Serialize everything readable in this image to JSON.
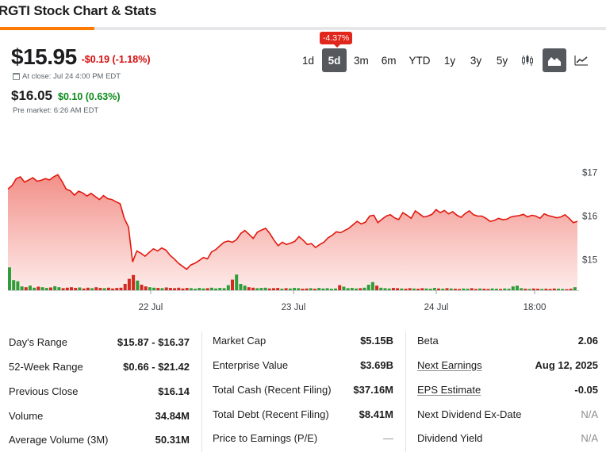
{
  "page": {
    "title": "RGTI Stock Chart & Stats"
  },
  "quote": {
    "price": "$15.95",
    "change": "-$0.19 (-1.18%)",
    "close_info": "At close: Jul 24 4:00 PM EDT",
    "premarket_price": "$16.05",
    "premarket_change": "$0.10 (0.63%)",
    "premarket_info": "Pre market: 6:26 AM EDT"
  },
  "range_tabs": {
    "selected": "5d",
    "selected_change_badge": "-4.37%",
    "items": [
      "1d",
      "5d",
      "3m",
      "6m",
      "YTD",
      "1y",
      "3y",
      "5y"
    ]
  },
  "chart_types": {
    "items": [
      "candlestick-chart-icon",
      "mountain-chart-icon",
      "line-chart-icon"
    ],
    "selected": "mountain-chart-icon"
  },
  "colors": {
    "accent": "#ff7a00",
    "down": "#d60a0a",
    "up": "#0a8a19",
    "line": "#e2190f",
    "area": "#f08a84",
    "badge": "#e1261c",
    "tab_active": "#55595e"
  },
  "chart_data": {
    "type": "area",
    "title": "",
    "xlabel": "",
    "ylabel": "",
    "ylim": [
      14.3,
      17.5
    ],
    "y_ticks": [
      "$17",
      "$16",
      "$15"
    ],
    "x_ticks": [
      "22 Jul",
      "23 Jul",
      "24 Jul",
      "18:00"
    ],
    "grid": false,
    "series": [
      {
        "values": [
          16.62,
          16.7,
          16.86,
          16.9,
          16.78,
          16.83,
          16.88,
          16.8,
          16.82,
          16.86,
          16.83,
          16.9,
          16.95,
          16.8,
          16.62,
          16.58,
          16.48,
          16.57,
          16.53,
          16.46,
          16.52,
          16.45,
          16.38,
          16.47,
          16.4,
          16.38,
          16.33,
          16.28,
          15.95,
          15.75,
          14.95,
          15.2,
          15.15,
          15.08,
          15.17,
          15.25,
          15.2,
          15.27,
          15.22,
          15.1,
          15.02,
          14.92,
          14.85,
          14.78,
          14.88,
          14.92,
          14.98,
          15.05,
          15.02,
          15.18,
          15.23,
          15.32,
          15.4,
          15.43,
          15.4,
          15.46,
          15.6,
          15.67,
          15.58,
          15.49,
          15.63,
          15.68,
          15.72,
          15.6,
          15.45,
          15.32,
          15.4,
          15.35,
          15.38,
          15.42,
          15.53,
          15.45,
          15.35,
          15.37,
          15.28,
          15.35,
          15.4,
          15.5,
          15.56,
          15.64,
          15.62,
          15.67,
          15.72,
          15.8,
          15.88,
          15.82,
          15.86,
          16.0,
          16.02,
          15.85,
          15.93,
          16.0,
          16.03,
          15.96,
          15.92,
          16.08,
          16.02,
          15.95,
          16.12,
          16.05,
          15.98,
          16.0,
          16.04,
          16.15,
          16.08,
          16.13,
          16.05,
          16.1,
          16.02,
          15.97,
          16.06,
          16.12,
          16.03,
          16.0,
          16.0,
          15.95,
          15.88,
          15.9,
          15.95,
          15.92,
          15.93,
          15.98,
          16.0,
          16.01,
          16.04,
          15.98,
          16.02,
          16.0,
          15.95,
          16.05,
          16.01,
          15.99,
          15.96,
          15.98,
          16.03,
          15.95,
          15.85,
          15.88
        ]
      }
    ],
    "volume": [
      0.9,
      0.4,
      0.35,
      0.15,
      0.12,
      0.18,
      0.1,
      0.14,
      0.12,
      0.09,
      0.11,
      0.16,
      0.12,
      0.08,
      0.1,
      0.12,
      0.09,
      0.11,
      0.07,
      0.1,
      0.08,
      0.12,
      0.09,
      0.08,
      0.1,
      0.07,
      0.09,
      0.1,
      0.25,
      0.45,
      0.6,
      0.38,
      0.22,
      0.15,
      0.12,
      0.1,
      0.09,
      0.08,
      0.11,
      0.09,
      0.08,
      0.1,
      0.07,
      0.09,
      0.08,
      0.06,
      0.09,
      0.07,
      0.08,
      0.1,
      0.07,
      0.09,
      0.08,
      0.2,
      0.42,
      0.62,
      0.25,
      0.18,
      0.12,
      0.1,
      0.08,
      0.09,
      0.1,
      0.07,
      0.08,
      0.09,
      0.06,
      0.08,
      0.07,
      0.09,
      0.08,
      0.06,
      0.07,
      0.08,
      0.06,
      0.09,
      0.07,
      0.08,
      0.06,
      0.07,
      0.2,
      0.14,
      0.08,
      0.09,
      0.07,
      0.08,
      0.1,
      0.22,
      0.32,
      0.18,
      0.1,
      0.08,
      0.07,
      0.09,
      0.08,
      0.07,
      0.06,
      0.08,
      0.07,
      0.06,
      0.08,
      0.07,
      0.06,
      0.09,
      0.07,
      0.06,
      0.08,
      0.07,
      0.06,
      0.05,
      0.07,
      0.06,
      0.08,
      0.05,
      0.07,
      0.06,
      0.05,
      0.07,
      0.06,
      0.05,
      0.07,
      0.06,
      0.15,
      0.18,
      0.08,
      0.06,
      0.05,
      0.07,
      0.06,
      0.05,
      0.06,
      0.05,
      0.07,
      0.06,
      0.05,
      0.04,
      0.06,
      0.12
    ]
  },
  "stats": {
    "col1": [
      {
        "label": "Day's Range",
        "value": "$15.87 - $16.37"
      },
      {
        "label": "52-Week Range",
        "value": "$0.66 - $21.42"
      },
      {
        "label": "Previous Close",
        "value": "$16.14"
      },
      {
        "label": "Volume",
        "value": "34.84M"
      },
      {
        "label": "Average Volume (3M)",
        "value": "50.31M"
      }
    ],
    "col2": [
      {
        "label": "Market Cap",
        "value": "$5.15B"
      },
      {
        "label": "Enterprise Value",
        "value": "$3.69B"
      },
      {
        "label": "Total Cash (Recent Filing)",
        "value": "$37.16M"
      },
      {
        "label": "Total Debt (Recent Filing)",
        "value": "$8.41M"
      },
      {
        "label": "Price to Earnings (P/E)",
        "value": "—"
      }
    ],
    "col3": [
      {
        "label": "Beta",
        "value": "2.06"
      },
      {
        "label": "Next Earnings",
        "value": "Aug 12, 2025"
      },
      {
        "label": "EPS Estimate",
        "value": "-0.05"
      },
      {
        "label": "Next Dividend Ex-Date",
        "value": "N/A"
      },
      {
        "label": "Dividend Yield",
        "value": "N/A"
      }
    ]
  }
}
